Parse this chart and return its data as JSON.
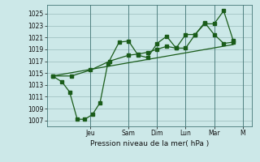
{
  "bg_color": "#cce8e8",
  "grid_color": "#99bbbb",
  "line_color": "#1a5c1a",
  "ylabel": "Pression niveau de la mer( hPa )",
  "ylim": [
    1006,
    1026.5
  ],
  "yticks": [
    1007,
    1009,
    1011,
    1013,
    1015,
    1017,
    1019,
    1021,
    1023,
    1025
  ],
  "day_labels": [
    "Jeu",
    "Sam",
    "Dim",
    "Lun",
    "Mar",
    "M"
  ],
  "day_positions": [
    2.0,
    4.0,
    5.5,
    7.0,
    8.5,
    10.0
  ],
  "line1_x": [
    0.0,
    0.5,
    0.9,
    1.3,
    1.7,
    2.1,
    2.5,
    2.9,
    3.5,
    4.0,
    4.5,
    5.0,
    5.5,
    6.0,
    6.5,
    7.0,
    7.5,
    8.0,
    8.5,
    9.0,
    9.5
  ],
  "line1_y": [
    1014.5,
    1013.5,
    1011.8,
    1007.2,
    1007.2,
    1008.0,
    1010.0,
    1016.5,
    1020.2,
    1020.4,
    1018.0,
    1017.6,
    1020.0,
    1021.2,
    1019.2,
    1019.2,
    1021.5,
    1023.3,
    1023.3,
    1025.5,
    1020.5
  ],
  "line2_x": [
    0.0,
    1.0,
    2.0,
    3.0,
    4.0,
    4.5,
    5.0,
    5.5,
    6.0,
    6.5,
    7.0,
    7.5,
    8.0,
    8.5,
    9.0,
    9.5
  ],
  "line2_y": [
    1014.5,
    1014.5,
    1015.5,
    1017.0,
    1018.0,
    1018.2,
    1018.5,
    1019.0,
    1019.5,
    1019.2,
    1021.5,
    1021.5,
    1023.5,
    1021.5,
    1020.0,
    1020.2
  ],
  "line3_x": [
    0.0,
    9.5
  ],
  "line3_y": [
    1014.5,
    1019.8
  ],
  "xlim": [
    -0.3,
    10.5
  ],
  "figsize": [
    3.2,
    2.0
  ],
  "dpi": 100
}
